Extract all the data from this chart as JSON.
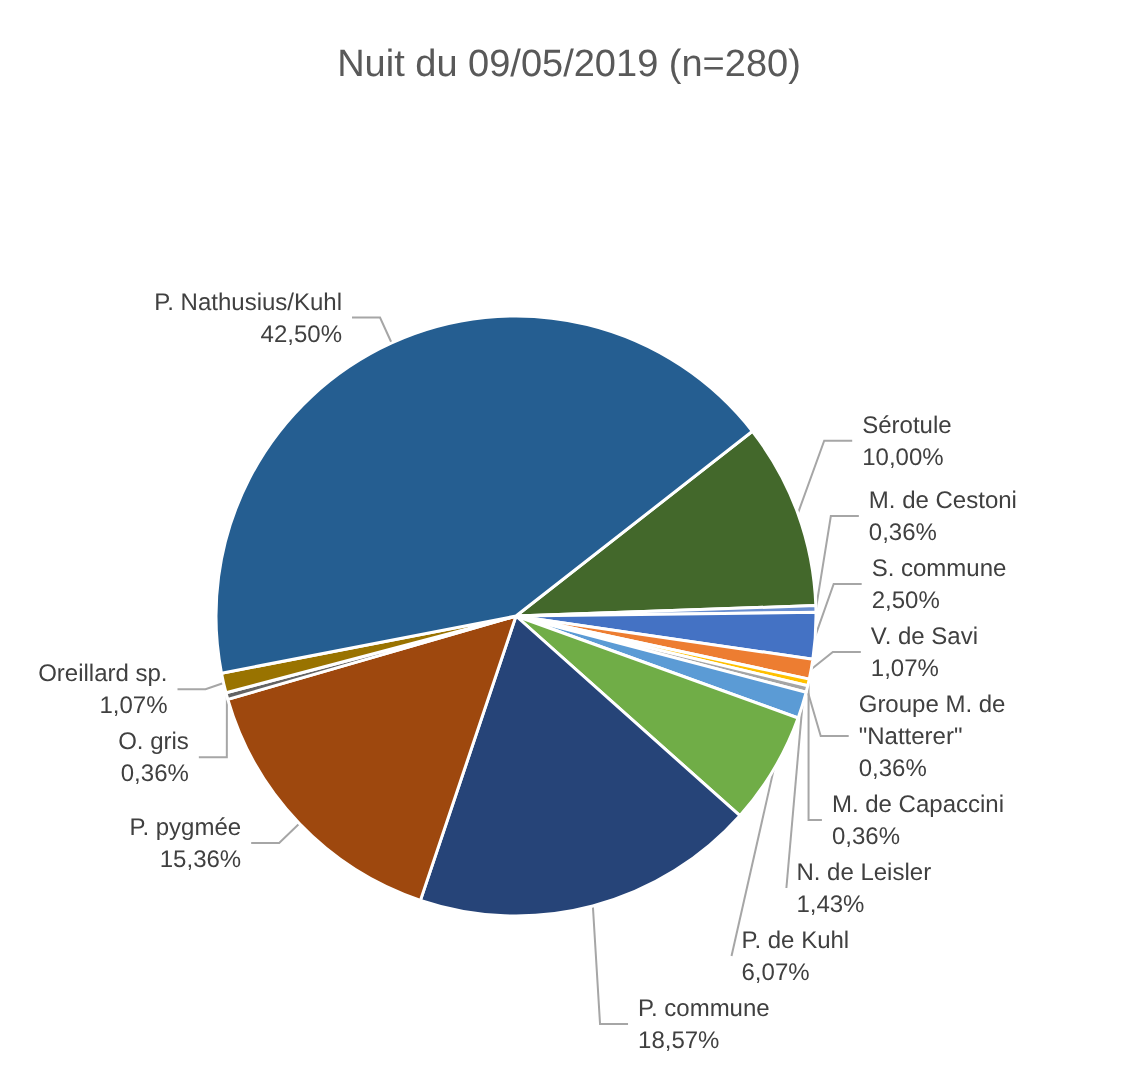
{
  "chart_data": {
    "type": "pie",
    "title": "Nuit du 09/05/2019 (n=280)",
    "categories": [
      "Sérotule",
      "M. de Cestoni",
      "S. commune",
      "V. de Savi",
      "M. de Capaccini",
      "Groupe M. de \"Natterer\"",
      "N. de Leisler",
      "P. de Kuhl",
      "P. commune",
      "P. pygmée",
      "O. gris",
      "Oreillard sp.",
      "P. Nathusius/Kuhl"
    ],
    "values": [
      10.0,
      0.36,
      2.5,
      1.07,
      0.36,
      0.36,
      1.43,
      6.07,
      18.57,
      15.36,
      0.36,
      1.07,
      42.5
    ],
    "value_labels": [
      "10,00%",
      "0,36%",
      "2,50%",
      "1,07%",
      "0,36%",
      "0,36%",
      "1,43%",
      "6,07%",
      "18,57%",
      "15,36%",
      "0,36%",
      "1,07%",
      "42,50%"
    ],
    "colors": [
      "#43682b",
      "#698ed0",
      "#4472c4",
      "#ed7d31",
      "#ffc000",
      "#a5a5a5",
      "#5b9bd5",
      "#70ad47",
      "#264478",
      "#9e480e",
      "#636363",
      "#997300",
      "#255e91"
    ],
    "legend": false
  }
}
